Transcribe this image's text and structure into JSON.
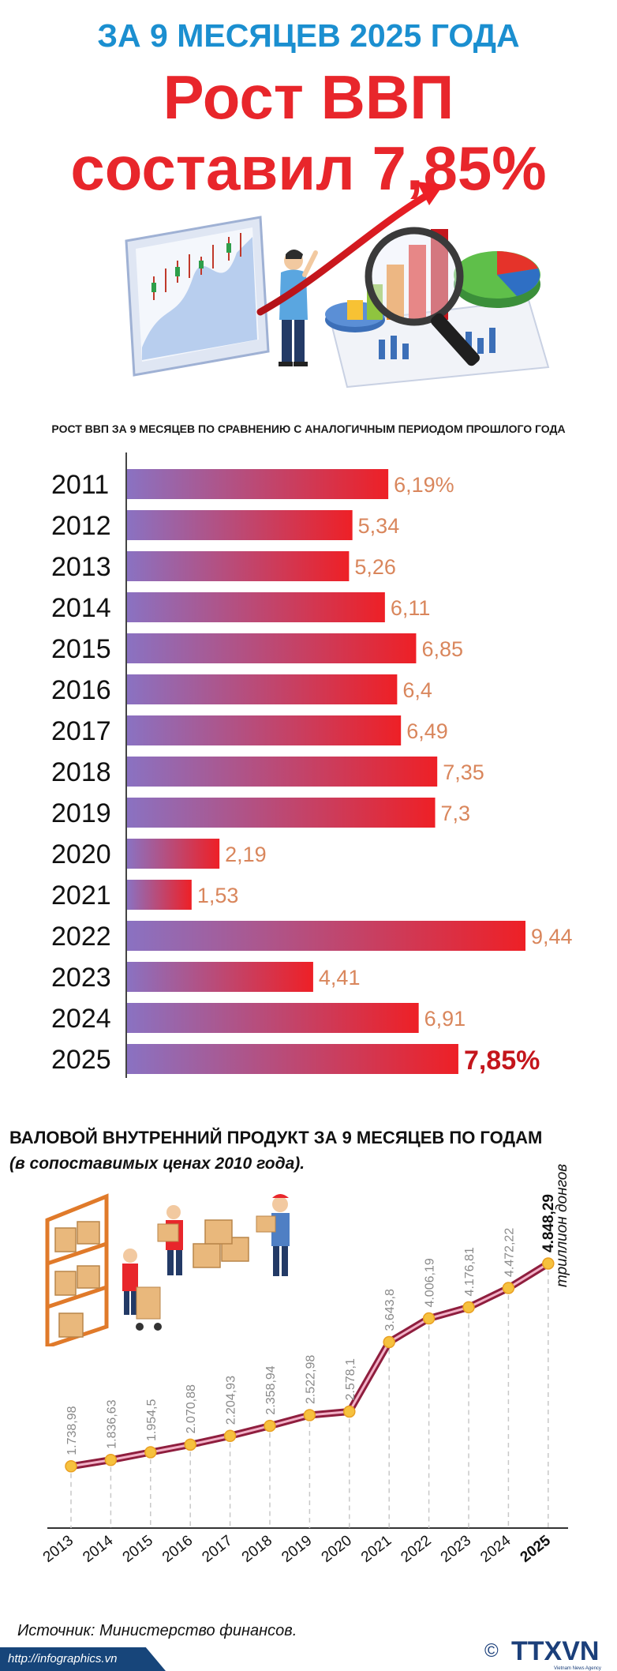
{
  "header": {
    "subtitle": "ЗА 9 МЕСЯЦЕВ 2025 ГОДА",
    "title_line1": "Рост ВВП",
    "title_line2": "составил 7,85%"
  },
  "footer": {
    "source": "Источник: Министерство финансов.",
    "url": "http://infographics.vn",
    "logo_text": "TTXVN",
    "logo_subtext": "Vietnam News Agency",
    "copyright_symbol": "©"
  },
  "colors": {
    "title_blue": "#1b8fd0",
    "title_red": "#e8262b",
    "bar_start": "#8a72c2",
    "bar_end": "#ee2026",
    "value_orange": "#d9865c",
    "highlight_red": "#c4161c",
    "line_color": "#8f1e3e",
    "point_color": "#f6c13e"
  },
  "chart_data": [
    {
      "type": "bar",
      "orientation": "horizontal",
      "title": "РОСТ ВВП ЗА 9 МЕСЯЦЕВ ПО СРАВНЕНИЮ С АНАЛОГИЧНЫМ ПЕРИОДОМ ПРОШЛОГО ГОДА",
      "categories": [
        "2011",
        "2012",
        "2013",
        "2014",
        "2015",
        "2016",
        "2017",
        "2018",
        "2019",
        "2020",
        "2021",
        "2022",
        "2023",
        "2024",
        "2025"
      ],
      "values": [
        6.19,
        5.34,
        5.26,
        6.11,
        6.85,
        6.4,
        6.49,
        7.35,
        7.3,
        2.19,
        1.53,
        9.44,
        4.41,
        6.91,
        7.85
      ],
      "labels": [
        "6,19%",
        "5,34",
        "5,26",
        "6,11",
        "6,85",
        "6,4",
        "6,49",
        "7,35",
        "7,3",
        "2,19",
        "1,53",
        "9,44",
        "4,41",
        "6,91",
        "7,85%"
      ],
      "highlight_index": 14,
      "xlim": [
        0,
        9.44
      ]
    },
    {
      "type": "line",
      "title": "ВАЛОВОЙ ВНУТРЕННИЙ ПРОДУКТ ЗА 9 МЕСЯЦЕВ ПО ГОДАМ",
      "subtitle": "(в сопоставимых ценах 2010 года).",
      "unit": "триллион донгов",
      "x": [
        "2013",
        "2014",
        "2015",
        "2016",
        "2017",
        "2018",
        "2019",
        "2020",
        "2021",
        "2022",
        "2023",
        "2024",
        "2025"
      ],
      "values": [
        1738.98,
        1836.63,
        1954.5,
        2070.88,
        2204.93,
        2358.94,
        2522.98,
        2578.1,
        3643.8,
        4006.19,
        4176.81,
        4472.22,
        4848.29
      ],
      "labels": [
        "1.738,98",
        "1.836,63",
        "1.954,5",
        "2.070,88",
        "2.204,93",
        "2.358,94",
        "2.522,98",
        "2.578,1",
        "3.643,8",
        "4.006,19",
        "4.176,81",
        "4.472,22",
        "4.848,29"
      ],
      "highlight_index": 12
    }
  ]
}
